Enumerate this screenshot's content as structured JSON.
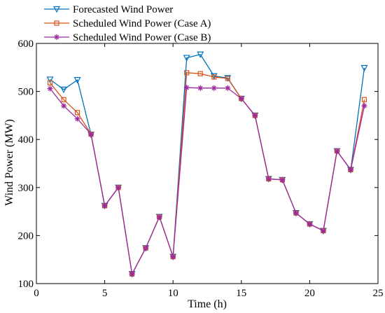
{
  "chart_data": {
    "type": "line",
    "xlabel": "Time (h)",
    "ylabel": "Wind Power (MW)",
    "xlim": [
      0,
      25
    ],
    "ylim": [
      100,
      600
    ],
    "xticks": [
      0,
      5,
      10,
      15,
      20,
      25
    ],
    "yticks": [
      100,
      200,
      300,
      400,
      500,
      600
    ],
    "grid": false,
    "legend_position": "top-left",
    "x": [
      1,
      2,
      3,
      4,
      5,
      6,
      7,
      8,
      9,
      10,
      11,
      12,
      13,
      14,
      15,
      16,
      17,
      18,
      19,
      20,
      21,
      22,
      23,
      24
    ],
    "series": [
      {
        "name": "Forecasted Wind Power",
        "color": "#0072BD",
        "marker": "triangle-down",
        "values": [
          525,
          504,
          524,
          410,
          262,
          300,
          120,
          174,
          239,
          156,
          570,
          577,
          532,
          528,
          485,
          450,
          318,
          316,
          247,
          224,
          210,
          376,
          337,
          549
        ]
      },
      {
        "name": "Scheduled Wind Power (Case A)",
        "color": "#D95319",
        "marker": "square",
        "values": [
          518,
          483,
          456,
          411,
          262,
          300,
          120,
          174,
          239,
          156,
          539,
          537,
          530,
          527,
          485,
          450,
          318,
          316,
          247,
          224,
          210,
          376,
          337,
          483
        ]
      },
      {
        "name": "Scheduled Wind Power (Case B)",
        "color": "#9E2A9E",
        "marker": "asterisk",
        "values": [
          506,
          470,
          443,
          411,
          262,
          300,
          120,
          174,
          239,
          156,
          508,
          507,
          507,
          507,
          485,
          450,
          318,
          316,
          247,
          224,
          210,
          376,
          337,
          470
        ]
      }
    ]
  }
}
